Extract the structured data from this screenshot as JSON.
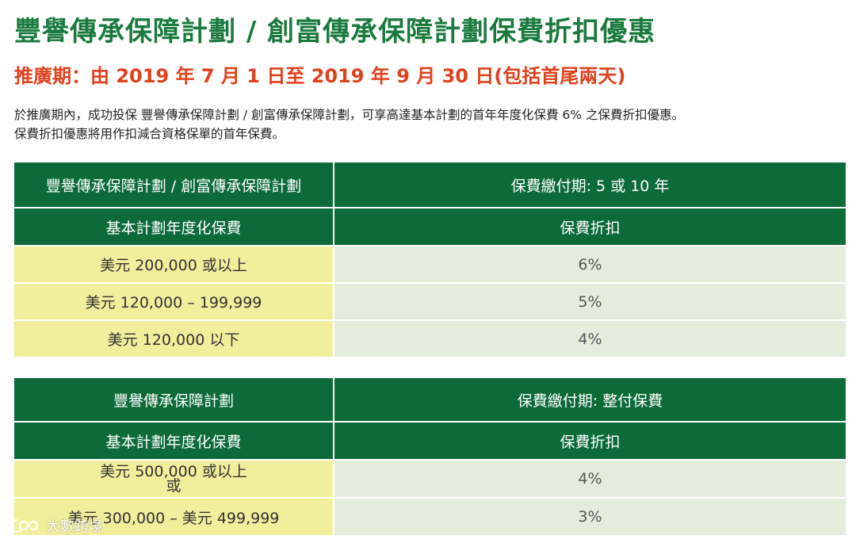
{
  "title": "豐譽傳承保障計劃 / 創富傳承保障計劃保費折扣優惠",
  "period": {
    "prefix": "推廣期：由 2019 年 7 月 ",
    "highlight": "1",
    "suffix": " 日至 2019 年 9 月 30 日(包括首尾兩天)"
  },
  "description": {
    "line1": "於推廣期內，成功投保 豐譽傳承保障計劃 / 創富傳承保障計劃，可享高達基本計劃的首年年度化保費 6% 之保費折扣優惠。",
    "line2": "保費折扣優惠將用作扣減合資格保單的首年保費。"
  },
  "table1": {
    "plan_header": "豐譽傳承保障計劃 / 創富傳承保障計劃",
    "term_header": "保費繳付期: 5 或 10 年",
    "premium_header": "基本計劃年度化保費",
    "discount_header": "保費折扣",
    "rows": [
      {
        "amount": "美元 200,000 或以上",
        "discount": "6%"
      },
      {
        "amount": "美元 120,000 – 199,999",
        "discount": "5%"
      },
      {
        "amount": "美元 120,000 以下",
        "discount": "4%"
      }
    ]
  },
  "table2": {
    "plan_header": "豐譽傳承保障計劃",
    "term_header": "保費繳付期: 整付保費",
    "premium_header": "基本計劃年度化保費",
    "discount_header": "保費折扣",
    "rows": [
      {
        "amount_line1": "美元 500,000 或以上",
        "amount_line2": "或",
        "discount": "4%"
      },
      {
        "amount": "美元 300,000 – 美元 499,999",
        "discount": "3%"
      }
    ]
  },
  "watermark": {
    "text": "大數跨境",
    "icon": "watermark-logo-icon"
  },
  "colors": {
    "title_green": "#1a7a3e",
    "header_green": "#0d6b3a",
    "period_red": "#e0401c",
    "amount_yellow": "#f1ee9c",
    "discount_green": "#e3eddb"
  }
}
